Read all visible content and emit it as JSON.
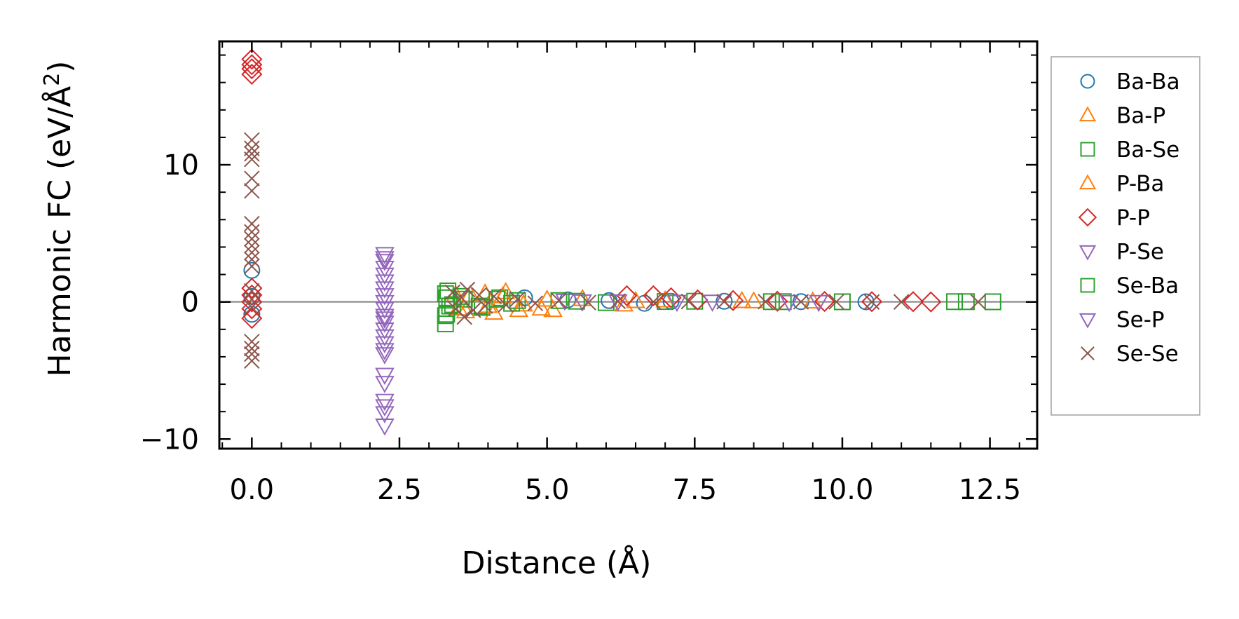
{
  "chart_data": {
    "type": "scatter",
    "title": "",
    "xlabel": "Distance (Å)",
    "ylabel_main": "Harmonic FC (eV/Å",
    "ylabel_sup": "2",
    "ylabel_close": ")",
    "xlim": [
      -0.55,
      13.3
    ],
    "ylim": [
      -10.7,
      19.0
    ],
    "xticks": [
      0.0,
      2.5,
      5.0,
      7.5,
      10.0,
      12.5
    ],
    "xtick_labels": [
      "0.0",
      "2.5",
      "5.0",
      "7.5",
      "10.0",
      "12.5"
    ],
    "yticks": [
      -10,
      0,
      10
    ],
    "ytick_labels": [
      "−10",
      "0",
      "10"
    ],
    "zero_line": 0,
    "legend_position": "outside-right",
    "series": [
      {
        "name": "Ba-Ba",
        "marker": "circle",
        "color": "#1f77b4",
        "points": [
          [
            0.0,
            2.3
          ],
          [
            0.0,
            0.4
          ],
          [
            0.0,
            -0.9
          ],
          [
            4.62,
            0.3
          ],
          [
            5.35,
            0.15
          ],
          [
            6.05,
            0.1
          ],
          [
            6.65,
            -0.1
          ],
          [
            7.1,
            0.05
          ],
          [
            8.0,
            0.05
          ],
          [
            9.3,
            0.02
          ],
          [
            10.4,
            0.01
          ]
        ]
      },
      {
        "name": "Ba-P",
        "marker": "triangle-up",
        "color": "#ff7f0e",
        "points": [
          [
            3.45,
            0.5
          ],
          [
            3.62,
            -0.7
          ],
          [
            3.95,
            0.6
          ],
          [
            4.1,
            -0.8
          ],
          [
            4.3,
            0.7
          ],
          [
            4.52,
            -0.6
          ],
          [
            4.9,
            -0.5
          ],
          [
            5.1,
            -0.6
          ],
          [
            5.6,
            0.2
          ],
          [
            6.3,
            -0.2
          ],
          [
            7.0,
            0.1
          ],
          [
            8.3,
            0.05
          ],
          [
            9.5,
            0.02
          ]
        ]
      },
      {
        "name": "Ba-Se",
        "marker": "square",
        "color": "#2ca02c",
        "points": [
          [
            3.28,
            -1.6
          ],
          [
            3.28,
            -1.0
          ],
          [
            3.28,
            0.6
          ],
          [
            3.3,
            0.3
          ],
          [
            3.35,
            -0.3
          ],
          [
            3.6,
            0.2
          ],
          [
            3.9,
            -0.4
          ],
          [
            4.2,
            0.3
          ],
          [
            4.5,
            0.1
          ],
          [
            5.2,
            0.1
          ],
          [
            6.0,
            -0.05
          ],
          [
            7.5,
            0.05
          ],
          [
            9.0,
            0.02
          ],
          [
            10.0,
            0.01
          ],
          [
            11.9,
            0.02
          ],
          [
            12.1,
            0.02
          ],
          [
            12.55,
            0.01
          ]
        ]
      },
      {
        "name": "P-Ba",
        "marker": "triangle-up",
        "color": "#ff7f0e",
        "points": [
          [
            3.5,
            -0.5
          ],
          [
            3.7,
            0.5
          ],
          [
            4.0,
            -0.3
          ],
          [
            4.25,
            0.4
          ],
          [
            4.6,
            -0.2
          ],
          [
            5.0,
            0.15
          ],
          [
            6.5,
            0.05
          ],
          [
            8.5,
            0.03
          ]
        ]
      },
      {
        "name": "P-P",
        "marker": "diamond",
        "color": "#d62728",
        "points": [
          [
            0.0,
            17.7
          ],
          [
            0.0,
            17.3
          ],
          [
            0.0,
            17.0
          ],
          [
            0.0,
            16.6
          ],
          [
            0.0,
            1.0
          ],
          [
            0.0,
            0.5
          ],
          [
            0.0,
            0.0
          ],
          [
            0.0,
            -0.5
          ],
          [
            0.0,
            -1.2
          ],
          [
            6.35,
            0.45
          ],
          [
            6.8,
            0.45
          ],
          [
            7.1,
            0.3
          ],
          [
            7.55,
            0.15
          ],
          [
            8.15,
            0.1
          ],
          [
            8.9,
            0.05
          ],
          [
            9.7,
            0.03
          ],
          [
            10.5,
            0.02
          ],
          [
            11.2,
            0.02
          ],
          [
            11.5,
            0.0
          ]
        ]
      },
      {
        "name": "P-Se",
        "marker": "triangle-down",
        "color": "#9467bd",
        "points": [
          [
            2.25,
            3.5
          ],
          [
            2.25,
            3.0
          ],
          [
            2.25,
            2.5
          ],
          [
            2.25,
            2.0
          ],
          [
            2.25,
            1.0
          ],
          [
            2.25,
            0.5
          ],
          [
            2.25,
            0.0
          ],
          [
            2.25,
            -0.5
          ],
          [
            2.25,
            -1.0
          ],
          [
            2.25,
            -1.5
          ],
          [
            2.25,
            -2.0
          ],
          [
            2.25,
            -2.5
          ],
          [
            2.25,
            -3.0
          ],
          [
            2.25,
            -3.8
          ],
          [
            2.25,
            -5.3
          ],
          [
            2.25,
            -5.9
          ],
          [
            2.25,
            -7.2
          ],
          [
            2.25,
            -7.6
          ],
          [
            2.25,
            -8.1
          ],
          [
            2.25,
            -9.0
          ],
          [
            5.3,
            0.1
          ],
          [
            6.2,
            0.05
          ],
          [
            7.8,
            0.03
          ],
          [
            9.6,
            0.01
          ]
        ]
      },
      {
        "name": "Se-Ba",
        "marker": "square",
        "color": "#2ca02c",
        "points": [
          [
            3.3,
            -0.9
          ],
          [
            3.32,
            0.8
          ],
          [
            3.4,
            -0.2
          ],
          [
            3.55,
            0.4
          ],
          [
            3.85,
            -0.3
          ],
          [
            4.15,
            0.2
          ],
          [
            4.4,
            -0.1
          ],
          [
            5.5,
            0.05
          ],
          [
            7.0,
            0.03
          ],
          [
            8.8,
            0.02
          ]
        ]
      },
      {
        "name": "Se-P",
        "marker": "triangle-down",
        "color": "#9467bd",
        "points": [
          [
            2.25,
            3.2
          ],
          [
            2.25,
            1.5
          ],
          [
            2.25,
            -1.2
          ],
          [
            2.25,
            -3.5
          ],
          [
            5.6,
            0.05
          ],
          [
            7.2,
            0.02
          ],
          [
            9.1,
            0.01
          ]
        ]
      },
      {
        "name": "Se-Se",
        "marker": "x",
        "color": "#8c564b",
        "points": [
          [
            0.0,
            11.8
          ],
          [
            0.0,
            11.2
          ],
          [
            0.0,
            10.8
          ],
          [
            0.0,
            10.4
          ],
          [
            0.0,
            9.0
          ],
          [
            0.0,
            8.1
          ],
          [
            0.0,
            5.7
          ],
          [
            0.0,
            5.1
          ],
          [
            0.0,
            4.6
          ],
          [
            0.0,
            4.1
          ],
          [
            0.0,
            3.6
          ],
          [
            0.0,
            3.1
          ],
          [
            0.0,
            2.6
          ],
          [
            0.0,
            0.8
          ],
          [
            0.0,
            0.2
          ],
          [
            0.0,
            -0.4
          ],
          [
            0.0,
            -2.9
          ],
          [
            0.0,
            -3.4
          ],
          [
            0.0,
            -3.8
          ],
          [
            0.0,
            -4.3
          ],
          [
            3.4,
            0.7
          ],
          [
            3.45,
            -0.5
          ],
          [
            3.55,
            0.3
          ],
          [
            3.6,
            -1.1
          ],
          [
            3.65,
            0.9
          ],
          [
            3.75,
            -0.6
          ],
          [
            3.85,
            0.5
          ],
          [
            3.95,
            -0.3
          ],
          [
            4.1,
            0.4
          ],
          [
            4.3,
            -0.2
          ],
          [
            4.5,
            0.2
          ],
          [
            4.8,
            -0.1
          ],
          [
            5.2,
            0.1
          ],
          [
            5.7,
            -0.05
          ],
          [
            6.2,
            0.05
          ],
          [
            6.8,
            0.0
          ],
          [
            7.4,
            0.03
          ],
          [
            8.0,
            0.02
          ],
          [
            8.7,
            0.02
          ],
          [
            9.3,
            0.01
          ],
          [
            9.9,
            0.01
          ],
          [
            10.5,
            0.0
          ],
          [
            11.0,
            0.0
          ],
          [
            12.3,
            0.0
          ]
        ]
      }
    ]
  }
}
